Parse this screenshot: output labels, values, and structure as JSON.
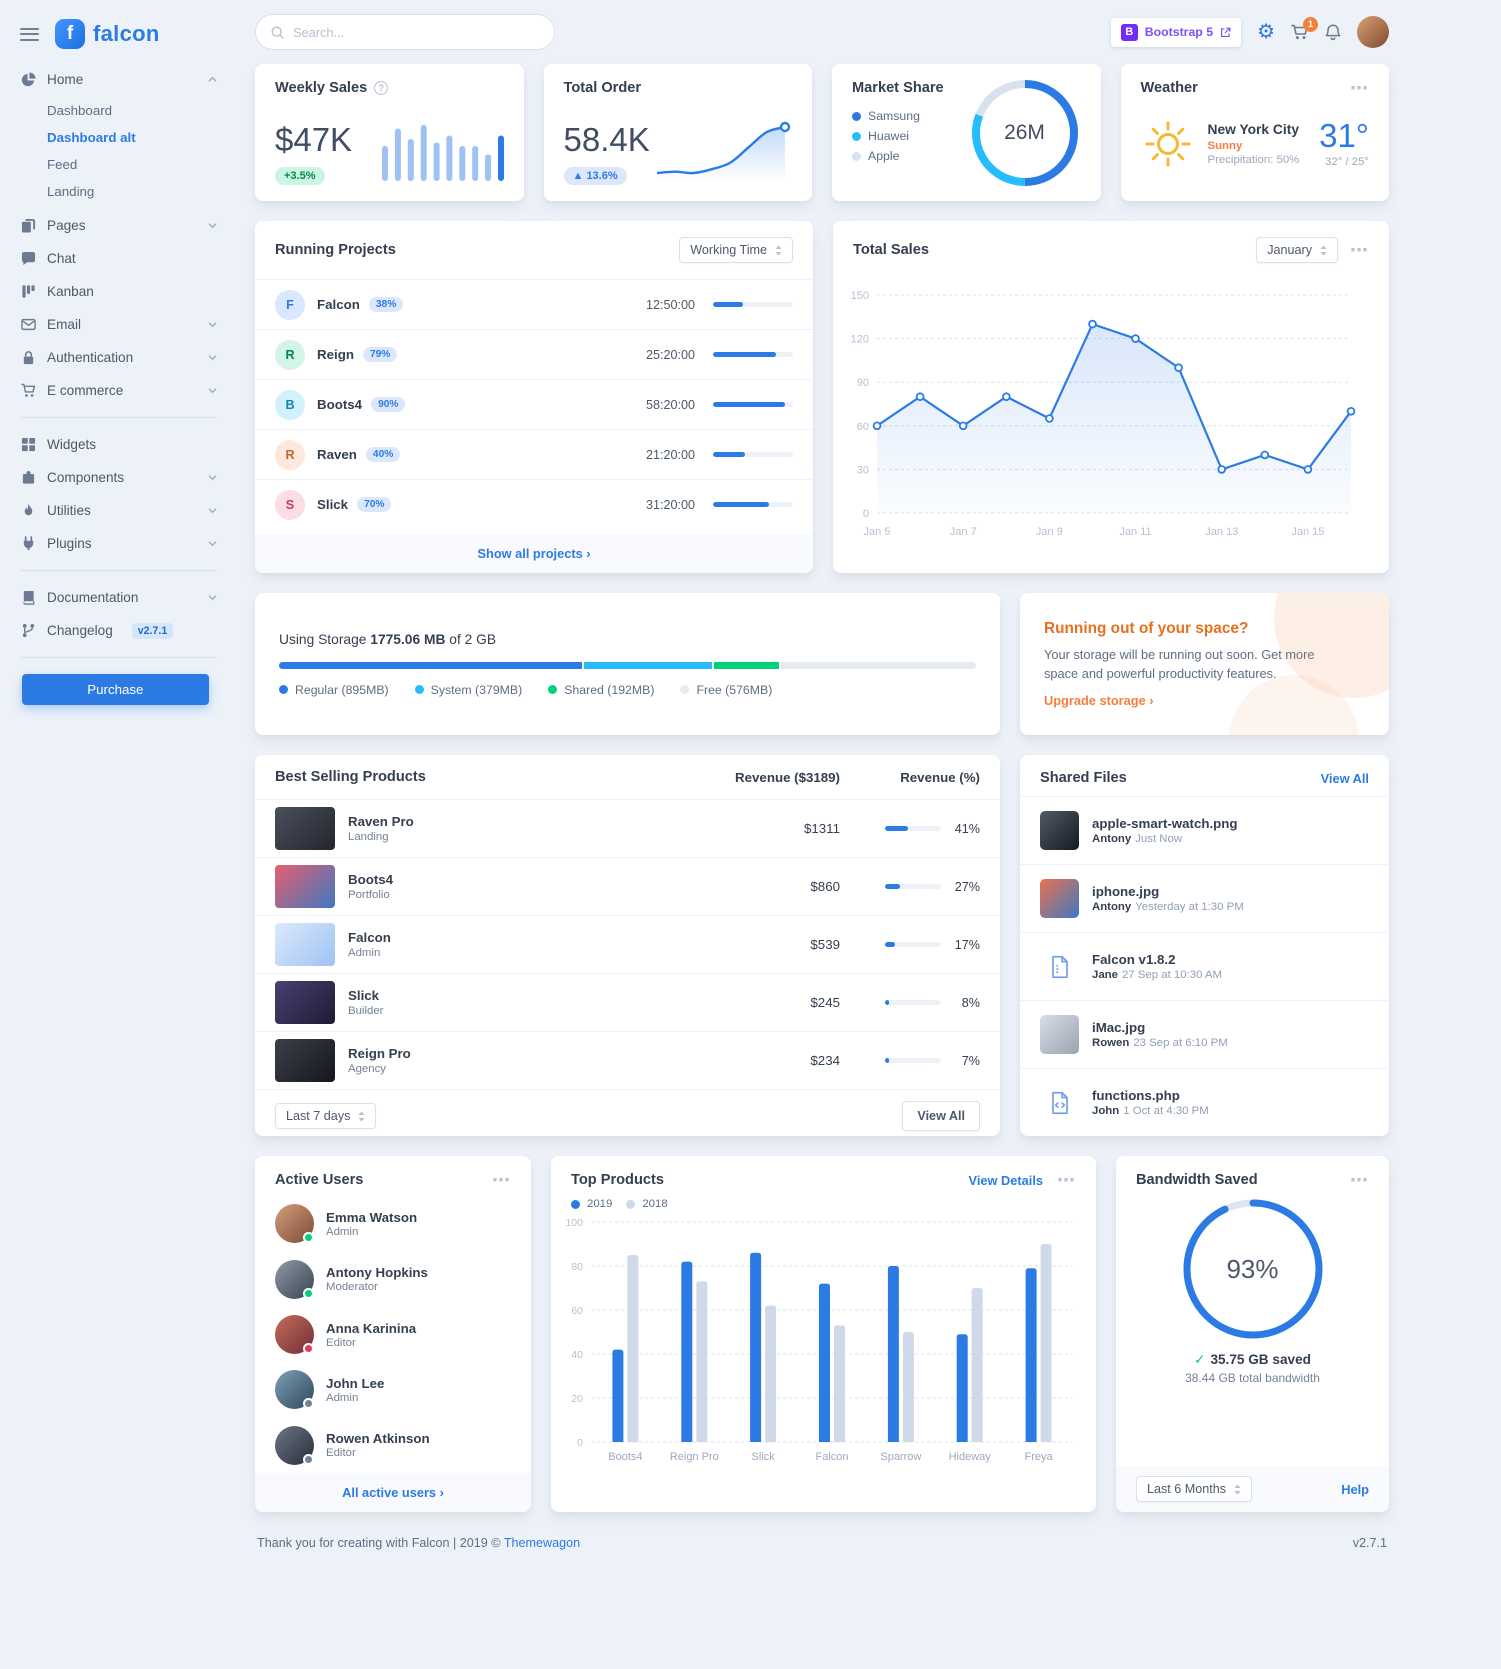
{
  "topbar": {
    "search_placeholder": "Search...",
    "bootstrap_badge": "Bootstrap 5",
    "cart_count": "1"
  },
  "sidebar": {
    "logo_text": "falcon",
    "items": [
      {
        "label": "Home"
      },
      {
        "label": "Pages"
      },
      {
        "label": "Chat"
      },
      {
        "label": "Kanban"
      },
      {
        "label": "Email"
      },
      {
        "label": "Authentication"
      },
      {
        "label": "E commerce"
      },
      {
        "label": "Widgets"
      },
      {
        "label": "Components"
      },
      {
        "label": "Utilities"
      },
      {
        "label": "Plugins"
      },
      {
        "label": "Documentation"
      },
      {
        "label": "Changelog"
      }
    ],
    "home_children": [
      {
        "label": "Dashboard"
      },
      {
        "label": "Dashboard alt"
      },
      {
        "label": "Feed"
      },
      {
        "label": "Landing"
      }
    ],
    "changelog_badge": "v2.7.1",
    "purchase_label": "Purchase"
  },
  "stats": {
    "weekly_sales": {
      "title": "Weekly Sales",
      "value": "$47K",
      "badge": "+3.5%"
    },
    "total_order": {
      "title": "Total Order",
      "value": "58.4K",
      "badge": "▲ 13.6%"
    },
    "market_share": {
      "title": "Market Share",
      "center": "26M",
      "legend": [
        {
          "label": "Samsung",
          "color": "#2c7be5"
        },
        {
          "label": "Huawei",
          "color": "#27bcfd"
        },
        {
          "label": "Apple",
          "color": "#d8e2ef"
        }
      ]
    },
    "weather": {
      "title": "Weather",
      "city": "New York City",
      "condition": "Sunny",
      "precipitation": "Precipitation: 50%",
      "temp": "31°",
      "range": "32° / 25°"
    }
  },
  "projects": {
    "title": "Running Projects",
    "select_value": "Working Time",
    "footer_link": "Show all projects ›",
    "rows": [
      {
        "initial": "F",
        "name": "Falcon",
        "pct": "38%",
        "time": "12:50:00",
        "progress": 38,
        "avatar_bg": "#d9e8ff",
        "avatar_fg": "#2c7be5"
      },
      {
        "initial": "R",
        "name": "Reign",
        "pct": "79%",
        "time": "25:20:00",
        "progress": 79,
        "avatar_bg": "#d2f5e7",
        "avatar_fg": "#00864e"
      },
      {
        "initial": "B",
        "name": "Boots4",
        "pct": "90%",
        "time": "58:20:00",
        "progress": 90,
        "avatar_bg": "#d3f1fd",
        "avatar_fg": "#1684b0"
      },
      {
        "initial": "R",
        "name": "Raven",
        "pct": "40%",
        "time": "21:20:00",
        "progress": 40,
        "avatar_bg": "#fde8dd",
        "avatar_fg": "#c46632"
      },
      {
        "initial": "S",
        "name": "Slick",
        "pct": "70%",
        "time": "31:20:00",
        "progress": 70,
        "avatar_bg": "#fbdde4",
        "avatar_fg": "#c9365c"
      }
    ]
  },
  "sales": {
    "title": "Total Sales",
    "select_value": "January"
  },
  "storage": {
    "label_prefix": "Using Storage",
    "used": "1775.06 MB",
    "label_suffix": "of 2 GB",
    "segments": [
      {
        "label": "Regular (895MB)",
        "pct": 43.8,
        "color": "#2c7be5"
      },
      {
        "label": "System (379MB)",
        "pct": 18.6,
        "color": "#27bcfd"
      },
      {
        "label": "Shared (192MB)",
        "pct": 9.4,
        "color": "#00d27a"
      },
      {
        "label": "Free (576MB)",
        "pct": 28.2,
        "color": "#e6eaf1"
      }
    ]
  },
  "space": {
    "title": "Running out of your space?",
    "body": "Your storage will be running out soon. Get more space and powerful productivity features.",
    "link": "Upgrade storage ›"
  },
  "products": {
    "title": "Best Selling Products",
    "col_revenue": "Revenue ($3189)",
    "col_pct": "Revenue (%)",
    "select_value": "Last 7 days",
    "view_all": "View All",
    "rows": [
      {
        "name": "Raven Pro",
        "category": "Landing",
        "revenue": "$1311",
        "pct": 41,
        "pct_label": "41%",
        "thumb": [
          "#4a4f5c",
          "#23262e"
        ]
      },
      {
        "name": "Boots4",
        "category": "Portfolio",
        "revenue": "$860",
        "pct": 27,
        "pct_label": "27%",
        "thumb": [
          "#e4606d",
          "#3f78c3"
        ]
      },
      {
        "name": "Falcon",
        "category": "Admin",
        "revenue": "$539",
        "pct": 17,
        "pct_label": "17%",
        "thumb": [
          "#dce9fb",
          "#9ec3f4"
        ]
      },
      {
        "name": "Slick",
        "category": "Builder",
        "revenue": "$245",
        "pct": 8,
        "pct_label": "8%",
        "thumb": [
          "#4b3f75",
          "#1e1b33"
        ]
      },
      {
        "name": "Reign Pro",
        "category": "Agency",
        "revenue": "$234",
        "pct": 7,
        "pct_label": "7%",
        "thumb": [
          "#3c3f49",
          "#15171d"
        ]
      }
    ]
  },
  "files": {
    "title": "Shared Files",
    "view_all": "View All",
    "rows": [
      {
        "name": "apple-smart-watch.png",
        "by": "Antony",
        "when": "Just Now",
        "kind": "image",
        "thumb": [
          "#515a68",
          "#161a21"
        ]
      },
      {
        "name": "iphone.jpg",
        "by": "Antony",
        "when": "Yesterday at 1:30 PM",
        "kind": "image",
        "thumb": [
          "#e8734f",
          "#3f78c3"
        ]
      },
      {
        "name": "Falcon v1.8.2",
        "by": "Jane",
        "when": "27 Sep at 10:30 AM",
        "kind": "archive",
        "thumb": null
      },
      {
        "name": "iMac.jpg",
        "by": "Rowen",
        "when": "23 Sep at 6:10 PM",
        "kind": "image",
        "thumb": [
          "#d9dee7",
          "#9aa3b1"
        ]
      },
      {
        "name": "functions.php",
        "by": "John",
        "when": "1 Oct at 4:30 PM",
        "kind": "code",
        "thumb": null
      }
    ]
  },
  "users": {
    "title": "Active Users",
    "footer_link": "All active users ›",
    "rows": [
      {
        "name": "Emma Watson",
        "role": "Admin",
        "status_color": "#00d27a",
        "avatar": [
          "#d59f7e",
          "#7c4a35"
        ]
      },
      {
        "name": "Antony Hopkins",
        "role": "Moderator",
        "status_color": "#00d27a",
        "avatar": [
          "#8d9aa8",
          "#3a4450"
        ]
      },
      {
        "name": "Anna Karinina",
        "role": "Editor",
        "status_color": "#e63757",
        "avatar": [
          "#c96b5a",
          "#6e2f35"
        ]
      },
      {
        "name": "John Lee",
        "role": "Admin",
        "status_color": "#748194",
        "avatar": [
          "#7da0b8",
          "#2f4858"
        ]
      },
      {
        "name": "Rowen Atkinson",
        "role": "Editor",
        "status_color": "#748194",
        "avatar": [
          "#6d7787",
          "#262d38"
        ]
      }
    ]
  },
  "top_products": {
    "title": "Top Products",
    "view_details": "View Details",
    "legend": [
      {
        "label": "2019",
        "color": "#2c7be5"
      },
      {
        "label": "2018",
        "color": "#cfd9ea"
      }
    ]
  },
  "bandwidth": {
    "title": "Bandwidth Saved",
    "pct_label": "93%",
    "saved": "35.75 GB saved",
    "total": "38.44 GB total bandwidth",
    "select_value": "Last 6 Months",
    "help": "Help"
  },
  "page_footer": {
    "thanks": "Thank you for creating with Falcon |",
    "year": "2019 ©",
    "brand": "Themewagon",
    "version": "v2.7.1"
  },
  "chart_data": {
    "weekly_sales": {
      "type": "bar",
      "title": "Weekly Sales",
      "values": [
        50,
        75,
        60,
        80,
        55,
        65,
        50,
        50,
        38,
        65
      ],
      "bar_color": "#9dc2f3",
      "highlight_color": "#2c7be5"
    },
    "total_order": {
      "type": "area",
      "title": "Total Order",
      "values": [
        18,
        19,
        18,
        21,
        26,
        38,
        50,
        54
      ],
      "line_color": "#2c7be5"
    },
    "market_share": {
      "type": "donut",
      "title": "Market Share",
      "labels": [
        "Samsung",
        "Huawei",
        "Apple"
      ],
      "values": [
        13,
        8,
        5
      ],
      "unit": "M",
      "total_label": "26M",
      "colors": [
        "#2c7be5",
        "#27bcfd",
        "#d8e2ef"
      ]
    },
    "total_sales": {
      "type": "line",
      "title": "Total Sales",
      "month": "January",
      "values": [
        60,
        80,
        60,
        80,
        65,
        130,
        120,
        100,
        30,
        40,
        30,
        70
      ],
      "label_every": 2,
      "xtick_labels": [
        "Jan 5",
        "Jan 7",
        "Jan 9",
        "Jan 11",
        "Jan 13",
        "Jan 15"
      ],
      "ylim": [
        0,
        150
      ],
      "yticks": [
        0,
        30,
        60,
        90,
        120,
        150
      ],
      "line_color": "#2c7be5"
    },
    "top_products": {
      "type": "bar",
      "title": "Top Products",
      "categories": [
        "Boots4",
        "Reign Pro",
        "Slick",
        "Falcon",
        "Sparrow",
        "Hideway",
        "Freya"
      ],
      "series": [
        {
          "name": "2019",
          "color": "#2c7be5",
          "values": [
            42,
            82,
            86,
            72,
            80,
            49,
            79
          ]
        },
        {
          "name": "2018",
          "color": "#cfd9ea",
          "values": [
            85,
            73,
            62,
            53,
            50,
            70,
            90
          ]
        }
      ],
      "ylim": [
        0,
        100
      ],
      "yticks": [
        0,
        20,
        40,
        60,
        80,
        100
      ]
    },
    "bandwidth": {
      "type": "donut",
      "title": "Bandwidth Saved",
      "value": 93,
      "max": 100,
      "label": "93%",
      "color": "#2c7be5",
      "track_color": "#dde4f2"
    }
  }
}
